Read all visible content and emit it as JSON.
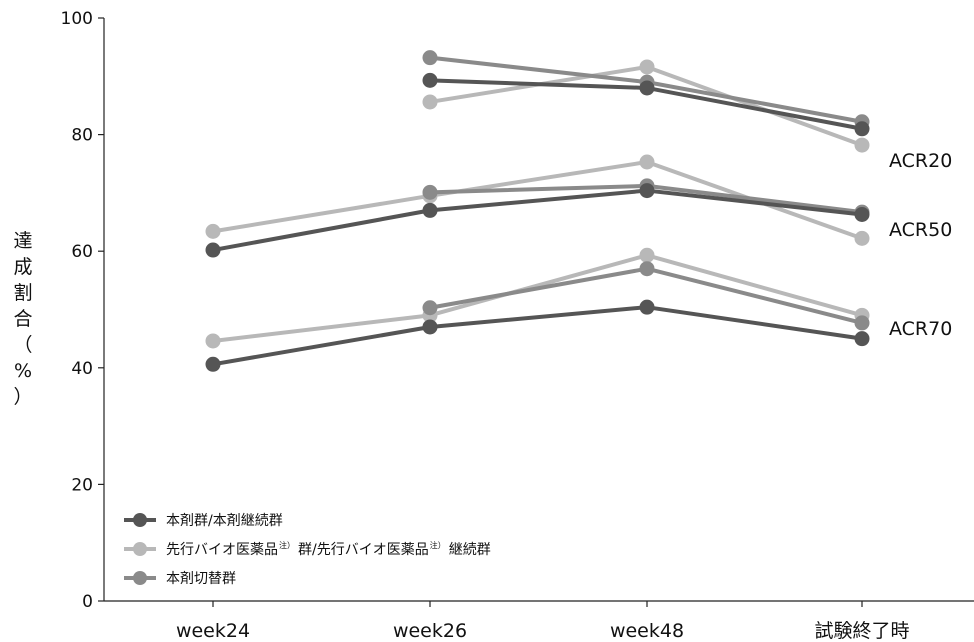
{
  "chart_data": {
    "type": "line",
    "title": "",
    "ylabel_chars": [
      "達",
      "成",
      "割",
      "合",
      "（",
      "%",
      "）"
    ],
    "xlabel": "",
    "categories": [
      "week24",
      "week26",
      "week48",
      "試験終了時"
    ],
    "yticks": [
      "0",
      "20",
      "40",
      "60",
      "80",
      "100"
    ],
    "ylim": [
      0,
      100
    ],
    "grid": false,
    "legend_position": "bottom-left",
    "series_names": {
      "s1": "本剤群/本剤継続群",
      "s2_part1": "先行バイオ医薬品",
      "s2_note1": "注）",
      "s2_part2": "群/先行バイオ医薬品",
      "s2_note2": "注）",
      "s2_part3": "継続群",
      "s3": "本剤切替群"
    },
    "colors": {
      "s1": "#555555",
      "s2": "#b8b8b8",
      "s3": "#8a8a8a"
    },
    "groups": [
      {
        "label": "ACR20",
        "series": [
          {
            "key": "s1",
            "values": [
              null,
              89.3,
              88.0,
              81.0
            ]
          },
          {
            "key": "s2",
            "values": [
              null,
              85.6,
              91.6,
              78.2
            ]
          },
          {
            "key": "s3",
            "values": [
              null,
              93.2,
              89.0,
              82.2
            ]
          }
        ]
      },
      {
        "label": "ACR50",
        "series": [
          {
            "key": "s1",
            "values": [
              60.2,
              67.0,
              70.4,
              66.3
            ]
          },
          {
            "key": "s2",
            "values": [
              63.4,
              69.5,
              75.3,
              62.2
            ]
          },
          {
            "key": "s3",
            "values": [
              null,
              70.1,
              71.2,
              66.7
            ]
          }
        ]
      },
      {
        "label": "ACR70",
        "series": [
          {
            "key": "s1",
            "values": [
              40.6,
              47.0,
              50.4,
              45.0
            ]
          },
          {
            "key": "s2",
            "values": [
              44.6,
              49.0,
              59.3,
              49.0
            ]
          },
          {
            "key": "s3",
            "values": [
              null,
              50.3,
              57.0,
              47.7
            ]
          }
        ]
      }
    ]
  }
}
